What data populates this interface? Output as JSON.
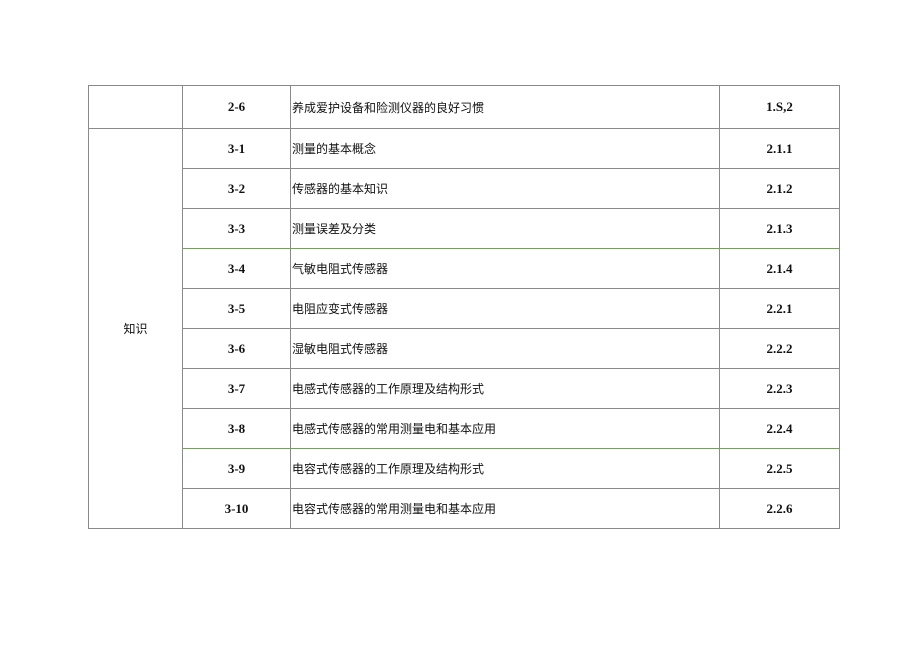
{
  "rows": [
    {
      "category": "",
      "code": "2-6",
      "content": "养成爱护设备和险测仪器的良好习惯",
      "ref": "1.S,2"
    },
    {
      "category": "知识",
      "code": "3-1",
      "content": "测量的基本概念",
      "ref": "2.1.1"
    },
    {
      "code": "3-2",
      "content": "传感器的基本知识",
      "ref": "2.1.2"
    },
    {
      "code": "3-3",
      "content": "测量误差及分类",
      "ref": "2.1.3"
    },
    {
      "code": "3-4",
      "content": "气敏电阻式传感器",
      "ref": "2.1.4"
    },
    {
      "code": "3-5",
      "content": "电阻应变式传感器",
      "ref": "2.2.1"
    },
    {
      "code": "3-6",
      "content": "湿敏电阻式传感器",
      "ref": "2.2.2"
    },
    {
      "code": "3-7",
      "content": "电感式传感器的工作原理及结构形式",
      "ref": "2.2.3"
    },
    {
      "code": "3-8",
      "content": "电感式传感器的常用测量电和基本应用",
      "ref": "2.2.4"
    },
    {
      "code": "3-9",
      "content": "电容式传感器的工作原理及结构形式",
      "ref": "2.2.5"
    },
    {
      "code": "3-10",
      "content": "电容式传感器的常用测量电和基本应用",
      "ref": "2.2.6"
    }
  ]
}
